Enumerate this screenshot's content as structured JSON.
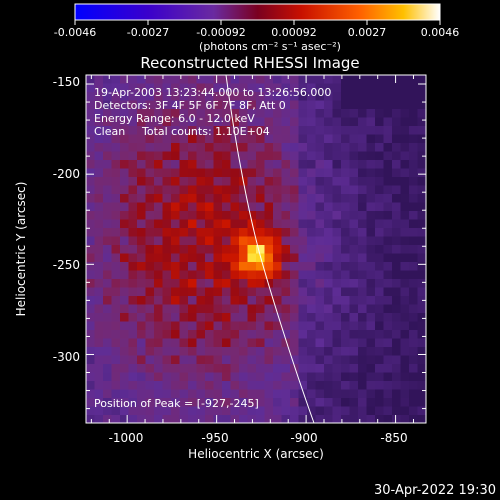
{
  "colorbar": {
    "ticks": [
      "-0.0046",
      "-0.0027",
      "-0.00092",
      "0.00092",
      "0.0027",
      "0.0046"
    ],
    "units_label": "(photons cm⁻² s⁻¹ asec⁻²)",
    "min": -0.0046,
    "max": 0.0046
  },
  "image": {
    "title": "Reconstructed RHESSI Image",
    "info": {
      "time_range": "19-Apr-2003 13:23:44.000 to 13:26:56.000",
      "detectors": "Detectors: 3F 4F 5F 6F 7F 8F, Att 0",
      "energy_range": "Energy Range: 6.0 - 12.0 keV",
      "method": "Clean",
      "total_counts": "Total counts: 1.10E+04"
    },
    "peak": "Position of Peak = [-927,-245]"
  },
  "axes": {
    "xlabel": "Heliocentric X (arcsec)",
    "ylabel": "Heliocentric Y (arcsec)",
    "xticks": [
      "-1000",
      "-950",
      "-900",
      "-850"
    ],
    "yticks": [
      "-150",
      "-200",
      "-250",
      "-300"
    ],
    "x_values": [
      -1000,
      -950,
      -900,
      -850
    ],
    "y_values": [
      -150,
      -200,
      -250,
      -300
    ],
    "xlim": [
      -1023,
      -833
    ],
    "ylim": [
      -338,
      -145
    ]
  },
  "footer": {
    "timestamp": "30-Apr-2022 19:30"
  },
  "colors": {
    "background": "#000000",
    "foreground": "#ffffff",
    "peak_color": "#ffff80",
    "low_color": "#5a2a90"
  }
}
